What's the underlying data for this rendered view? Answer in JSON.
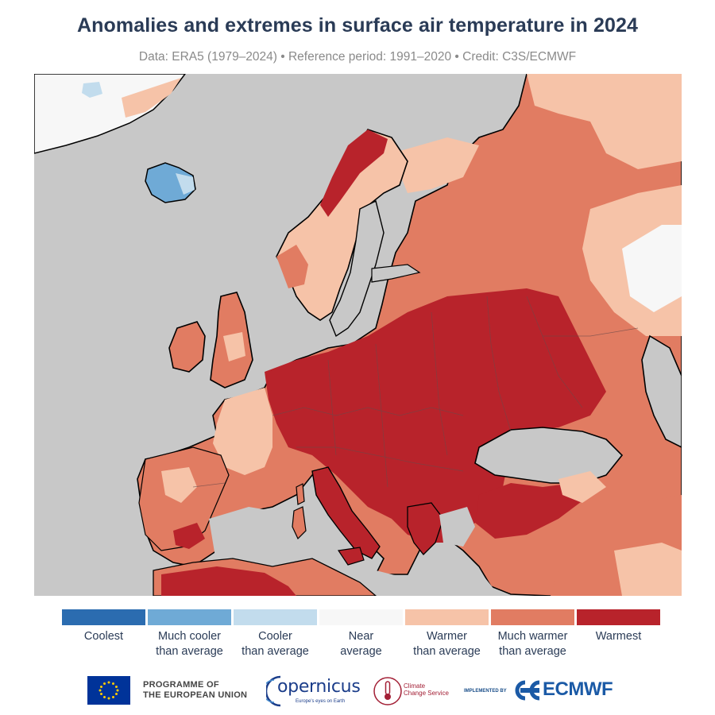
{
  "title": "Anomalies and extremes in surface air temperature in 2024",
  "subtitle": "Data: ERA5 (1979–2024) • Reference period: 1991–2020 • Credit: C3S/ECMWF",
  "map": {
    "region": "Europe",
    "year": 2024,
    "variable": "surface air temperature",
    "colors": {
      "ocean": "#c8c8c8",
      "coastline": "#000000",
      "border": "#7a6a6a"
    }
  },
  "legend": {
    "items": [
      {
        "label": "Coolest",
        "color": "#2b6cb0"
      },
      {
        "label": "Much cooler\nthan average",
        "color": "#6faad6"
      },
      {
        "label": "Cooler\nthan average",
        "color": "#c2dced"
      },
      {
        "label": "Near\naverage",
        "color": "#f7f7f7"
      },
      {
        "label": "Warmer\nthan average",
        "color": "#f6c3a8"
      },
      {
        "label": "Much warmer\nthan average",
        "color": "#e17c62"
      },
      {
        "label": "Warmest",
        "color": "#b8232b"
      }
    ]
  },
  "footer": {
    "eu_text": "PROGRAMME OF\nTHE EUROPEAN UNION",
    "copernicus_name": "opernicus",
    "copernicus_tagline": "Europe's eyes on Earth",
    "c3s_text": "Climate\nChange Service",
    "implemented_by": "IMPLEMENTED BY",
    "ecmwf_name": "ECMWF"
  }
}
